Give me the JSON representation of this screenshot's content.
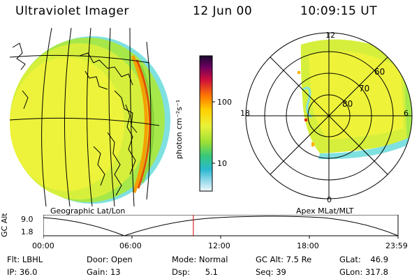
{
  "header": {
    "instrument": "Ultraviolet Imager",
    "date": "12 Jun 00",
    "time": "10:09:15 UT"
  },
  "colorbar": {
    "unit_label": "photon cm⁻²s⁻¹",
    "tick_high": "100",
    "tick_low": "10"
  },
  "geo_panel": {
    "caption": "Geographic Lat/Lon"
  },
  "polar_panel": {
    "caption": "Apex MLat/MLT",
    "mlt_top": "12",
    "mlt_bottom": "0",
    "mlt_left": "18",
    "mlt_right": "6",
    "lat_60": "60",
    "lat_70": "70",
    "lat_80": "80"
  },
  "altitude_plot": {
    "ylabel": "GC Alt",
    "ytick_high": "9.0",
    "ytick_low": "1.8",
    "xticks": [
      "00:00",
      "06:00",
      "12:00",
      "18:00",
      "23:59"
    ],
    "current_time_fraction": 0.423
  },
  "status": {
    "filter_label": "Flt:",
    "filter_value": "LBHL",
    "ip_label": "IP:",
    "ip_value": "36.0",
    "door_label": "Door:",
    "door_value": "Open",
    "gain_label": "Gain:",
    "gain_value": "13",
    "mode_label": "Mode:",
    "mode_value": "Normal",
    "dsp_label": "Dsp:",
    "dsp_value": "5.1",
    "gcalt_label": "GC Alt:",
    "gcalt_value": "7.5 Re",
    "seq_label": "Seq:",
    "seq_value": "39",
    "glat_label": "GLat:",
    "glat_value": "46.9",
    "glon_label": "GLon:",
    "glon_value": "317.8"
  }
}
